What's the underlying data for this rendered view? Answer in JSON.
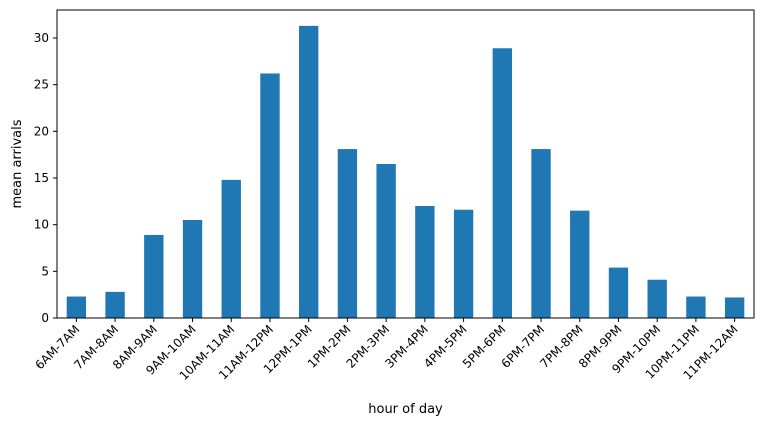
{
  "chart_data": {
    "type": "bar",
    "xlabel": "hour of day",
    "ylabel": "mean arrivals",
    "ylim": [
      0,
      33
    ],
    "yticks": [
      0,
      5,
      10,
      15,
      20,
      25,
      30
    ],
    "bar_color": "#1f77b4",
    "grid": false,
    "categories": [
      "6AM-7AM",
      "7AM-8AM",
      "8AM-9AM",
      "9AM-10AM",
      "10AM-11AM",
      "11AM-12PM",
      "12PM-1PM",
      "1PM-2PM",
      "2PM-3PM",
      "3PM-4PM",
      "4PM-5PM",
      "5PM-6PM",
      "6PM-7PM",
      "7PM-8PM",
      "8PM-9PM",
      "9PM-10PM",
      "10PM-11PM",
      "11PM-12AM"
    ],
    "values": [
      2.3,
      2.8,
      8.9,
      10.5,
      14.8,
      26.2,
      31.3,
      18.1,
      16.5,
      12.0,
      11.6,
      28.9,
      18.1,
      11.5,
      5.4,
      4.1,
      2.3,
      2.2
    ]
  }
}
